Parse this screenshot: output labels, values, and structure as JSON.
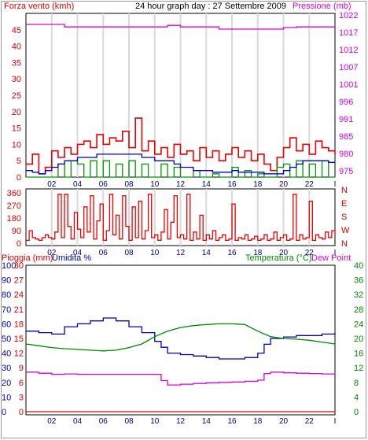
{
  "chart_data": [
    {
      "type": "line",
      "title": "24 hour graph day : 27 Settembre 2009",
      "ylabel": "Forza vento (kmh)",
      "y2label": "Pressione (mb)",
      "ylim": [
        0,
        50
      ],
      "y2lim": [
        974,
        1026
      ],
      "x_ticks": [
        "02",
        "04",
        "06",
        "08",
        "10",
        "12",
        "14",
        "16",
        "18",
        "20",
        "22",
        "I"
      ],
      "y_ticks": [
        0,
        5,
        10,
        15,
        20,
        25,
        30,
        35,
        40,
        45
      ],
      "y2_ticks": [
        975,
        980,
        985,
        991,
        996,
        1001,
        1007,
        1012,
        1017,
        1022
      ],
      "grid": true,
      "series": [
        {
          "color": "#ee0000",
          "x": [
            0,
            0.5,
            1,
            1.5,
            2,
            2.5,
            3,
            3.5,
            4,
            4.5,
            5,
            5.5,
            6,
            6.5,
            7,
            7.5,
            8,
            8.5,
            9,
            9.5,
            10,
            10.5,
            11,
            11.5,
            12,
            12.5,
            13,
            13.5,
            14,
            14.5,
            15,
            15.5,
            16,
            16.5,
            17,
            17.5,
            18,
            18.5,
            19,
            19.5,
            20,
            20.5,
            21,
            21.5,
            22,
            22.5,
            23,
            23.5,
            24
          ],
          "values": [
            4,
            7,
            1,
            3,
            8,
            6,
            9,
            7,
            10,
            11,
            9,
            13,
            10,
            12,
            11,
            14,
            9,
            18,
            8,
            11,
            7,
            9,
            6,
            10,
            7,
            8,
            5,
            9,
            6,
            8,
            5,
            7,
            9,
            6,
            8,
            5,
            7,
            4,
            2,
            6,
            9,
            12,
            8,
            10,
            7,
            11,
            9,
            8,
            7
          ]
        },
        {
          "color": "#009900",
          "x": [
            0,
            0.5,
            1,
            1.5,
            2,
            2.5,
            3,
            3.5,
            4,
            4.5,
            5,
            5.5,
            6,
            6.5,
            7,
            7.5,
            8,
            8.5,
            9,
            9.5,
            10,
            10.5,
            11,
            11.5,
            12,
            12.5,
            13,
            13.5,
            14,
            14.5,
            15,
            15.5,
            16,
            16.5,
            17,
            17.5,
            18,
            18.5,
            19,
            19.5,
            20,
            20.5,
            21,
            21.5,
            22,
            22.5,
            23,
            23.5,
            24
          ],
          "values": [
            0,
            0,
            0,
            0,
            0,
            4,
            0,
            5,
            4,
            0,
            5,
            0,
            5,
            0,
            4,
            0,
            5,
            0,
            4,
            0,
            0,
            4,
            0,
            3,
            0,
            0,
            2,
            0,
            0,
            1,
            0,
            0,
            3,
            0,
            2,
            0,
            1,
            0,
            0,
            3,
            4,
            0,
            5,
            0,
            4,
            0,
            5,
            0,
            0
          ]
        },
        {
          "color": "#0000cc",
          "x": [
            0,
            0.5,
            1,
            1.5,
            2,
            2.5,
            3,
            3.5,
            4,
            4.5,
            5,
            5.5,
            6,
            6.5,
            7,
            7.5,
            8,
            8.5,
            9,
            9.5,
            10,
            10.5,
            11,
            11.5,
            12,
            12.5,
            13,
            13.5,
            14,
            14.5,
            15,
            15.5,
            16,
            16.5,
            17,
            17.5,
            18,
            18.5,
            19,
            19.5,
            20,
            20.5,
            21,
            21.5,
            22,
            22.5,
            23,
            23.5,
            24
          ],
          "values": [
            2,
            1.5,
            1,
            2,
            3,
            4,
            5,
            5,
            6,
            6,
            6,
            7,
            7,
            7,
            7,
            7,
            7,
            7,
            6,
            6,
            5,
            5,
            5,
            4,
            3,
            3,
            2,
            2,
            2,
            1.5,
            1.5,
            1.5,
            2,
            1.5,
            1.5,
            1.5,
            1.5,
            1,
            1,
            1,
            2,
            3,
            4,
            5,
            5,
            5,
            5,
            4.5,
            4.5
          ]
        },
        {
          "color": "#dd00dd",
          "axis": "right",
          "x": [
            0,
            2,
            3,
            4,
            5,
            6,
            7,
            8,
            9,
            10,
            11,
            12,
            13,
            14,
            15,
            16,
            17,
            18,
            19,
            20,
            21,
            22,
            23,
            24
          ],
          "values": [
            1022.5,
            1022.5,
            1021.7,
            1021.7,
            1021.7,
            1021.7,
            1021.7,
            1021.7,
            1021.7,
            1021.7,
            1022.2,
            1021.7,
            1021.7,
            1021.7,
            1021.0,
            1021.0,
            1021.0,
            1021.0,
            1021.0,
            1021.5,
            1021.7,
            1021.7,
            1021.7,
            1021.7
          ]
        }
      ]
    },
    {
      "type": "line",
      "title": "",
      "ylim": [
        0,
        360
      ],
      "y_ticks": [
        0,
        90,
        180,
        270,
        360
      ],
      "y2_ticks": [
        "N",
        "W",
        "S",
        "E",
        "N"
      ],
      "x_ticks": [
        "02",
        "04",
        "06",
        "08",
        "10",
        "12",
        "14",
        "16",
        "18",
        "20",
        "22",
        "I"
      ],
      "grid": true,
      "series": [
        {
          "color": "#ee0000",
          "x": [
            0,
            0.25,
            0.5,
            0.75,
            1,
            1.25,
            1.5,
            1.75,
            2,
            2.25,
            2.5,
            2.75,
            3,
            3.25,
            3.5,
            3.75,
            4,
            4.25,
            4.5,
            4.75,
            5,
            5.25,
            5.5,
            5.75,
            6,
            6.25,
            6.5,
            6.75,
            7,
            7.25,
            7.5,
            7.75,
            8,
            8.25,
            8.5,
            8.75,
            9,
            9.25,
            9.5,
            9.75,
            10,
            10.25,
            10.5,
            10.75,
            11,
            11.25,
            11.5,
            11.75,
            12,
            12.25,
            12.5,
            12.75,
            13,
            13.25,
            13.5,
            13.75,
            14,
            14.25,
            14.5,
            14.75,
            15,
            15.25,
            15.5,
            15.75,
            16,
            16.25,
            16.5,
            16.75,
            17,
            17.25,
            17.5,
            17.75,
            18,
            18.25,
            18.5,
            18.75,
            19,
            19.25,
            19.5,
            19.75,
            20,
            20.25,
            20.5,
            20.75,
            21,
            21.25,
            21.5,
            21.75,
            22,
            22.25,
            22.5,
            22.75,
            23,
            23.25,
            23.5,
            23.75,
            24
          ],
          "values": [
            20,
            90,
            40,
            30,
            20,
            40,
            60,
            40,
            30,
            80,
            350,
            40,
            350,
            120,
            30,
            220,
            100,
            40,
            260,
            80,
            340,
            30,
            160,
            280,
            20,
            90,
            350,
            60,
            200,
            30,
            340,
            120,
            20,
            260,
            40,
            300,
            30,
            90,
            350,
            40,
            60,
            20,
            80,
            240,
            30,
            150,
            340,
            40,
            60,
            30,
            350,
            20,
            80,
            30,
            200,
            20,
            60,
            30,
            90,
            20,
            40,
            60,
            20,
            30,
            280,
            20,
            40,
            30,
            60,
            20,
            30,
            50,
            20,
            30,
            60,
            20,
            30,
            80,
            20,
            40,
            60,
            20,
            30,
            350,
            20,
            60,
            30,
            40,
            300,
            20,
            60,
            40,
            30,
            80,
            40,
            90,
            60
          ]
        }
      ]
    },
    {
      "type": "line",
      "title": "",
      "ylabel": "Pioggia (mm)",
      "ylabel2": "Umidita %",
      "y2label": "Temperatura (°C)",
      "y2label2": "Dew Point",
      "x_ticks": [
        "02",
        "04",
        "06",
        "08",
        "10",
        "12",
        "14",
        "16",
        "18",
        "20",
        "22",
        "I"
      ],
      "rain_ticks": [
        0,
        3,
        6,
        9,
        12,
        15,
        18,
        21,
        24,
        27,
        30
      ],
      "hum_ticks": [
        0,
        10,
        20,
        30,
        40,
        50,
        60,
        70,
        80,
        90,
        100
      ],
      "temp_ticks": [
        0,
        4,
        8,
        12,
        16,
        20,
        24,
        28,
        32,
        36,
        40
      ],
      "ylim": [
        0,
        100
      ],
      "y2lim": [
        0,
        40
      ],
      "grid": false,
      "series": [
        {
          "color": "#0000bb",
          "axis": "humidity",
          "x": [
            0,
            1,
            2,
            3,
            4,
            5,
            6,
            7,
            8,
            9,
            10,
            10.5,
            11,
            12,
            13,
            14,
            15,
            16,
            17,
            18,
            18.5,
            19,
            20,
            21,
            22,
            23,
            24
          ],
          "values": [
            55,
            54,
            53,
            58,
            60,
            62,
            64,
            62,
            58,
            54,
            48,
            44,
            40,
            39,
            38,
            37,
            36,
            36,
            37,
            40,
            46,
            50,
            51,
            52,
            52,
            53,
            54
          ]
        },
        {
          "color": "#008800",
          "axis": "temperature",
          "x": [
            0,
            1,
            2,
            3,
            4,
            5,
            6,
            7,
            8,
            9,
            10,
            11,
            12,
            13,
            14,
            15,
            16,
            17,
            18,
            19,
            20,
            21,
            22,
            23,
            24
          ],
          "values": [
            18.5,
            18,
            17.5,
            17.2,
            17,
            16.8,
            16.6,
            16.8,
            17.5,
            18.5,
            20.5,
            22,
            23,
            23.5,
            23.8,
            24,
            24,
            23.8,
            22,
            20.5,
            20,
            19.8,
            19.5,
            19,
            18.5
          ]
        },
        {
          "color": "#dd00dd",
          "axis": "temperature",
          "x": [
            0,
            1,
            2,
            3,
            4,
            5,
            6,
            7,
            8,
            9,
            10,
            10.5,
            11,
            12,
            13,
            14,
            15,
            16,
            17,
            18,
            18.5,
            19,
            20,
            21,
            22,
            23,
            24
          ],
          "values": [
            10.8,
            10.5,
            10.2,
            10.3,
            10.2,
            10.2,
            10.2,
            10.2,
            10.2,
            10.2,
            10.2,
            8.5,
            7.3,
            7.5,
            7.7,
            7.9,
            8.0,
            8.1,
            8.3,
            8.6,
            10.4,
            10.8,
            10.6,
            10.5,
            10.4,
            10.3,
            10.2
          ]
        },
        {
          "color": "#ee0000",
          "axis": "rain",
          "x": [
            0,
            24
          ],
          "values": [
            0,
            0
          ]
        }
      ]
    }
  ]
}
